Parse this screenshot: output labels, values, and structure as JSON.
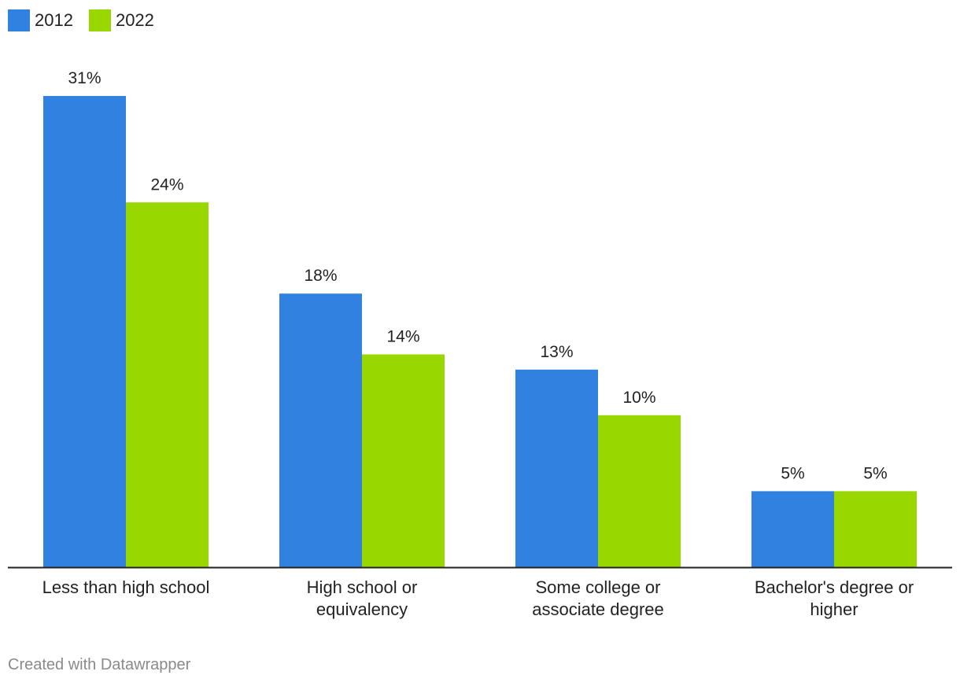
{
  "chart_data": {
    "type": "bar",
    "categories": [
      [
        "Less than high school"
      ],
      [
        "High school or",
        "equivalency"
      ],
      [
        "Some college or",
        "associate degree"
      ],
      [
        "Bachelor's degree or",
        "higher"
      ]
    ],
    "series": [
      {
        "name": "2012",
        "color": "#3182e0",
        "values": [
          31,
          18,
          13,
          5
        ],
        "labels": [
          "31%",
          "18%",
          "13%",
          "5%"
        ]
      },
      {
        "name": "2022",
        "color": "#98d800",
        "values": [
          24,
          14,
          10,
          5
        ],
        "labels": [
          "24%",
          "14%",
          "10%",
          "5%"
        ]
      }
    ],
    "ylim": [
      0,
      31
    ],
    "legend": "top-left",
    "grid": false
  },
  "footer": {
    "credit": "Created with Datawrapper"
  }
}
